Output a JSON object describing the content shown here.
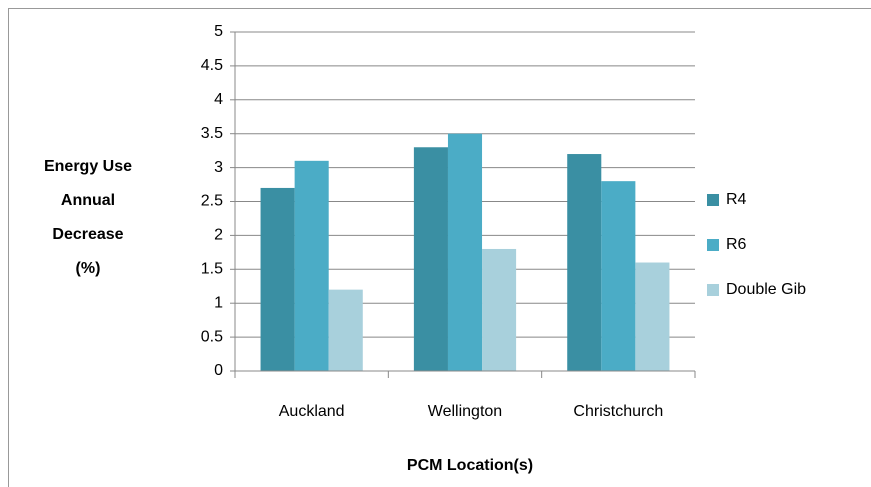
{
  "chart_data": {
    "type": "bar",
    "ylabel": [
      "Energy Use",
      "Annual",
      "Decrease",
      "(%)"
    ],
    "xlabel": "PCM Location(s)",
    "categories": [
      "Auckland",
      "Wellington",
      "Christchurch"
    ],
    "series": [
      {
        "name": "R4",
        "color": "#3a8fa3",
        "values": [
          2.7,
          3.3,
          3.2
        ]
      },
      {
        "name": "R6",
        "color": "#4bacc6",
        "values": [
          3.1,
          3.5,
          2.8
        ]
      },
      {
        "name": "Double Gib",
        "color": "#a8d0dc",
        "values": [
          1.2,
          1.8,
          1.6
        ]
      }
    ],
    "ylim": [
      0,
      5
    ],
    "yticks": [
      0,
      0.5,
      1,
      1.5,
      2,
      2.5,
      3,
      3.5,
      4,
      4.5,
      5
    ],
    "grid": true,
    "legend": "right"
  }
}
